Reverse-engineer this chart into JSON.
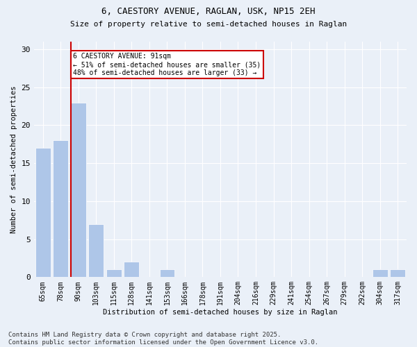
{
  "title1": "6, CAESTORY AVENUE, RAGLAN, USK, NP15 2EH",
  "title2": "Size of property relative to semi-detached houses in Raglan",
  "xlabel": "Distribution of semi-detached houses by size in Raglan",
  "ylabel": "Number of semi-detached properties",
  "categories": [
    "65sqm",
    "78sqm",
    "90sqm",
    "103sqm",
    "115sqm",
    "128sqm",
    "141sqm",
    "153sqm",
    "166sqm",
    "178sqm",
    "191sqm",
    "204sqm",
    "216sqm",
    "229sqm",
    "241sqm",
    "254sqm",
    "267sqm",
    "279sqm",
    "292sqm",
    "304sqm",
    "317sqm"
  ],
  "values": [
    17,
    18,
    23,
    7,
    1,
    2,
    0,
    1,
    0,
    0,
    0,
    0,
    0,
    0,
    0,
    0,
    0,
    0,
    0,
    1,
    1
  ],
  "bar_color": "#aec6e8",
  "highlight_index": 2,
  "vline_color": "#cc0000",
  "annotation_title": "6 CAESTORY AVENUE: 91sqm",
  "annotation_line1": "← 51% of semi-detached houses are smaller (35)",
  "annotation_line2": "48% of semi-detached houses are larger (33) →",
  "annotation_box_color": "#cc0000",
  "ylim": [
    0,
    31
  ],
  "yticks": [
    0,
    5,
    10,
    15,
    20,
    25,
    30
  ],
  "background_color": "#eaf0f8",
  "footer": "Contains HM Land Registry data © Crown copyright and database right 2025.\nContains public sector information licensed under the Open Government Licence v3.0.",
  "footer_fontsize": 6.5,
  "title1_fontsize": 9,
  "title2_fontsize": 8
}
